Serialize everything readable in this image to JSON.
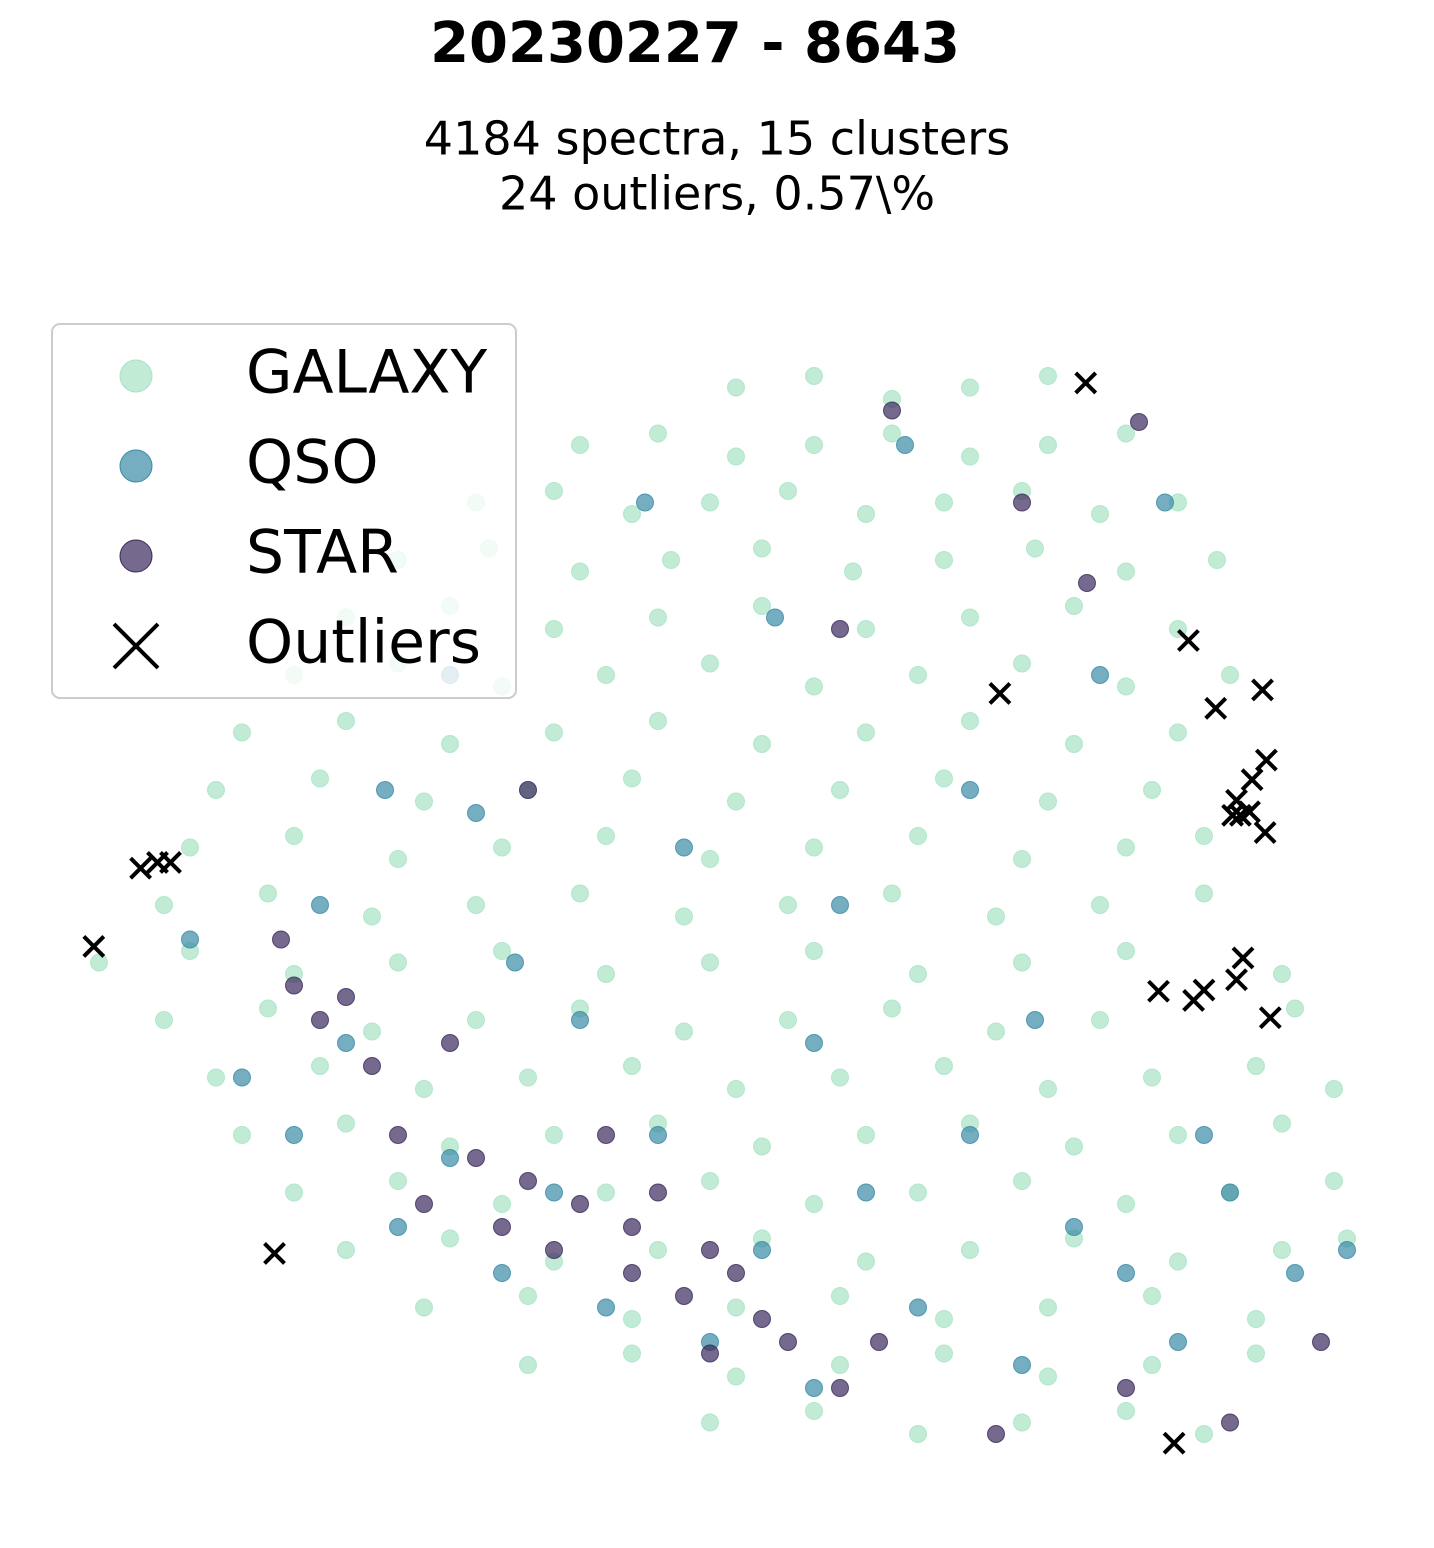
{
  "chart_data": {
    "type": "scatter",
    "title": "20230227 - 8643",
    "subtitle": [
      "4184 spectra, 15 clusters",
      "24 outliers, 0.57\\%"
    ],
    "xlim": [
      0,
      100
    ],
    "ylim": [
      0,
      100
    ],
    "legend": "upper left",
    "series": [
      {
        "name": "GALAXY",
        "color": "#a8e3c4",
        "marker": "o",
        "x": [
          52,
          58,
          64,
          70,
          76,
          40,
          46,
          52,
          58,
          64,
          70,
          76,
          82,
          32,
          38,
          44,
          50,
          56,
          62,
          68,
          74,
          80,
          86,
          26,
          33,
          40,
          47,
          54,
          61,
          68,
          75,
          82,
          89,
          22,
          30,
          38,
          46,
          54,
          62,
          70,
          78,
          86,
          18,
          26,
          34,
          42,
          50,
          58,
          66,
          74,
          82,
          90,
          14,
          22,
          30,
          38,
          46,
          54,
          62,
          70,
          78,
          86,
          12,
          20,
          28,
          36,
          44,
          52,
          60,
          68,
          76,
          84,
          10,
          18,
          26,
          34,
          42,
          50,
          58,
          66,
          74,
          82,
          88,
          8,
          16,
          24,
          32,
          40,
          48,
          56,
          64,
          72,
          80,
          88,
          3,
          10,
          18,
          26,
          34,
          42,
          50,
          58,
          66,
          74,
          82,
          94,
          8,
          16,
          24,
          32,
          40,
          48,
          56,
          64,
          72,
          80,
          95,
          12,
          20,
          28,
          36,
          44,
          52,
          60,
          68,
          76,
          84,
          92,
          98,
          14,
          22,
          30,
          38,
          46,
          54,
          62,
          70,
          78,
          86,
          94,
          18,
          26,
          34,
          42,
          50,
          58,
          66,
          74,
          82,
          90,
          98,
          22,
          30,
          38,
          46,
          54,
          62,
          70,
          78,
          86,
          94,
          99,
          28,
          36,
          44,
          52,
          60,
          68,
          76,
          84,
          92,
          36,
          44,
          52,
          60,
          68,
          76,
          84,
          92,
          50,
          58,
          66,
          74,
          82,
          88
        ],
        "y": [
          95,
          96,
          94,
          95,
          96,
          90,
          91,
          89,
          90,
          91,
          89,
          90,
          91,
          85,
          86,
          84,
          85,
          86,
          84,
          85,
          86,
          84,
          85,
          80,
          81,
          79,
          80,
          81,
          79,
          80,
          81,
          79,
          80,
          75,
          76,
          74,
          75,
          76,
          74,
          75,
          76,
          74,
          70,
          71,
          69,
          70,
          71,
          69,
          70,
          71,
          69,
          70,
          65,
          66,
          64,
          65,
          66,
          64,
          65,
          66,
          64,
          65,
          60,
          61,
          59,
          60,
          61,
          59,
          60,
          61,
          59,
          60,
          55,
          56,
          54,
          55,
          56,
          54,
          55,
          56,
          54,
          55,
          56,
          50,
          51,
          49,
          50,
          51,
          49,
          50,
          51,
          49,
          50,
          51,
          45,
          46,
          44,
          45,
          46,
          44,
          45,
          46,
          44,
          45,
          46,
          44,
          40,
          41,
          39,
          40,
          41,
          39,
          40,
          41,
          39,
          40,
          41,
          35,
          36,
          34,
          35,
          36,
          34,
          35,
          36,
          34,
          35,
          36,
          34,
          30,
          31,
          29,
          30,
          31,
          29,
          30,
          31,
          29,
          30,
          31,
          25,
          26,
          24,
          25,
          26,
          24,
          25,
          26,
          24,
          25,
          26,
          20,
          21,
          19,
          20,
          21,
          19,
          20,
          21,
          19,
          20,
          21,
          15,
          16,
          14,
          15,
          16,
          14,
          15,
          16,
          14,
          10,
          11,
          9,
          10,
          11,
          9,
          10,
          11,
          5,
          6,
          4,
          5,
          6,
          4
        ]
      },
      {
        "name": "QSO",
        "color": "#3a8aa6",
        "marker": "o",
        "x": [
          10,
          14,
          18,
          22,
          26,
          30,
          34,
          38,
          42,
          46,
          50,
          54,
          58,
          62,
          66,
          70,
          74,
          78,
          82,
          86,
          90,
          95,
          99,
          60,
          70,
          55,
          45,
          30,
          25,
          35,
          65,
          80,
          85,
          20,
          40,
          48,
          75,
          88,
          58,
          32
        ],
        "y": [
          47,
          35,
          30,
          38,
          22,
          28,
          18,
          25,
          15,
          30,
          12,
          20,
          8,
          25,
          15,
          30,
          10,
          22,
          18,
          12,
          25,
          18,
          20,
          50,
          60,
          75,
          85,
          70,
          60,
          45,
          90,
          70,
          85,
          50,
          40,
          55,
          40,
          30,
          38,
          58
        ]
      },
      {
        "name": "STAR",
        "color": "#3b2a5c",
        "marker": "o",
        "x": [
          17,
          18,
          20,
          22,
          24,
          26,
          28,
          30,
          32,
          34,
          36,
          38,
          40,
          42,
          44,
          46,
          48,
          50,
          52,
          54,
          56,
          50,
          44,
          60,
          63,
          72,
          82,
          90,
          97,
          60,
          74,
          79,
          83,
          64,
          36
        ],
        "y": [
          47,
          43,
          40,
          42,
          36,
          30,
          24,
          38,
          28,
          22,
          26,
          20,
          24,
          30,
          18,
          25,
          16,
          20,
          18,
          14,
          12,
          11,
          22,
          8,
          12,
          4,
          8,
          5,
          12,
          74,
          85,
          78,
          92,
          93,
          60
        ]
      },
      {
        "name": "Outliers",
        "color": "#000000",
        "marker": "x",
        "x": [
          78.9,
          86.8,
          72.3,
          92.5,
          88.9,
          92.8,
          91.7,
          90.5,
          90.8,
          91.5,
          90.2,
          92.7,
          6.2,
          7.5,
          8.5,
          2.6,
          91.0,
          90.5,
          84.5,
          87.2,
          88.0,
          93.1,
          16.5,
          85.7
        ],
        "y": [
          95.4,
          73.0,
          68.4,
          68.7,
          67.1,
          62.6,
          60.9,
          59.1,
          57.8,
          58.1,
          57.8,
          56.3,
          53.2,
          53.7,
          53.7,
          46.4,
          45.4,
          43.5,
          42.5,
          41.7,
          42.6,
          40.2,
          19.7,
          3.2
        ]
      }
    ]
  }
}
